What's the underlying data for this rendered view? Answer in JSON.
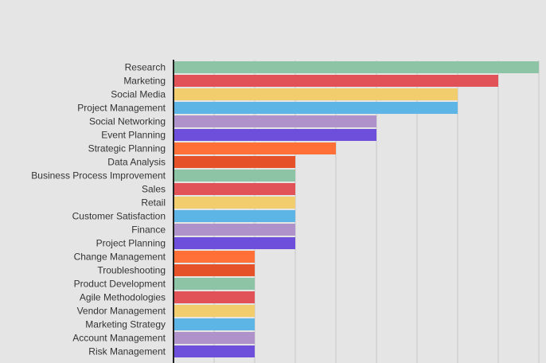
{
  "chart_data": {
    "type": "bar",
    "orientation": "horizontal",
    "title": "",
    "xlabel": "",
    "ylabel": "",
    "xlim": [
      0,
      9
    ],
    "grid": true,
    "legend": "none",
    "categories": [
      "Research",
      "Marketing",
      "Social Media",
      "Project Management",
      "Social Networking",
      "Event Planning",
      "Strategic Planning",
      "Data Analysis",
      "Business Process Improvement",
      "Sales",
      "Retail",
      "Customer Satisfaction",
      "Finance",
      "Project Planning",
      "Change Management",
      "Troubleshooting",
      "Product Development",
      "Agile Methodologies",
      "Vendor Management",
      "Marketing Strategy",
      "Account Management",
      "Risk Management"
    ],
    "values": [
      9,
      8,
      7,
      7,
      5,
      5,
      4,
      3,
      3,
      3,
      3,
      3,
      3,
      3,
      2,
      2,
      2,
      2,
      2,
      2,
      2,
      2
    ],
    "colors": [
      "#8dc4a5",
      "#e05257",
      "#f2cd6e",
      "#5db5e6",
      "#ae92c9",
      "#6d4fdb",
      "#ff6f38",
      "#e5522a",
      "#8dc4a5",
      "#e05257",
      "#f2cd6e",
      "#5db5e6",
      "#ae92c9",
      "#6d4fdb",
      "#ff6f38",
      "#e5522a",
      "#8dc4a5",
      "#e05257",
      "#f2cd6e",
      "#5db5e6",
      "#ae92c9",
      "#6d4fdb"
    ],
    "axis_color": "#222222",
    "grid_color": "#c8c8c8"
  }
}
